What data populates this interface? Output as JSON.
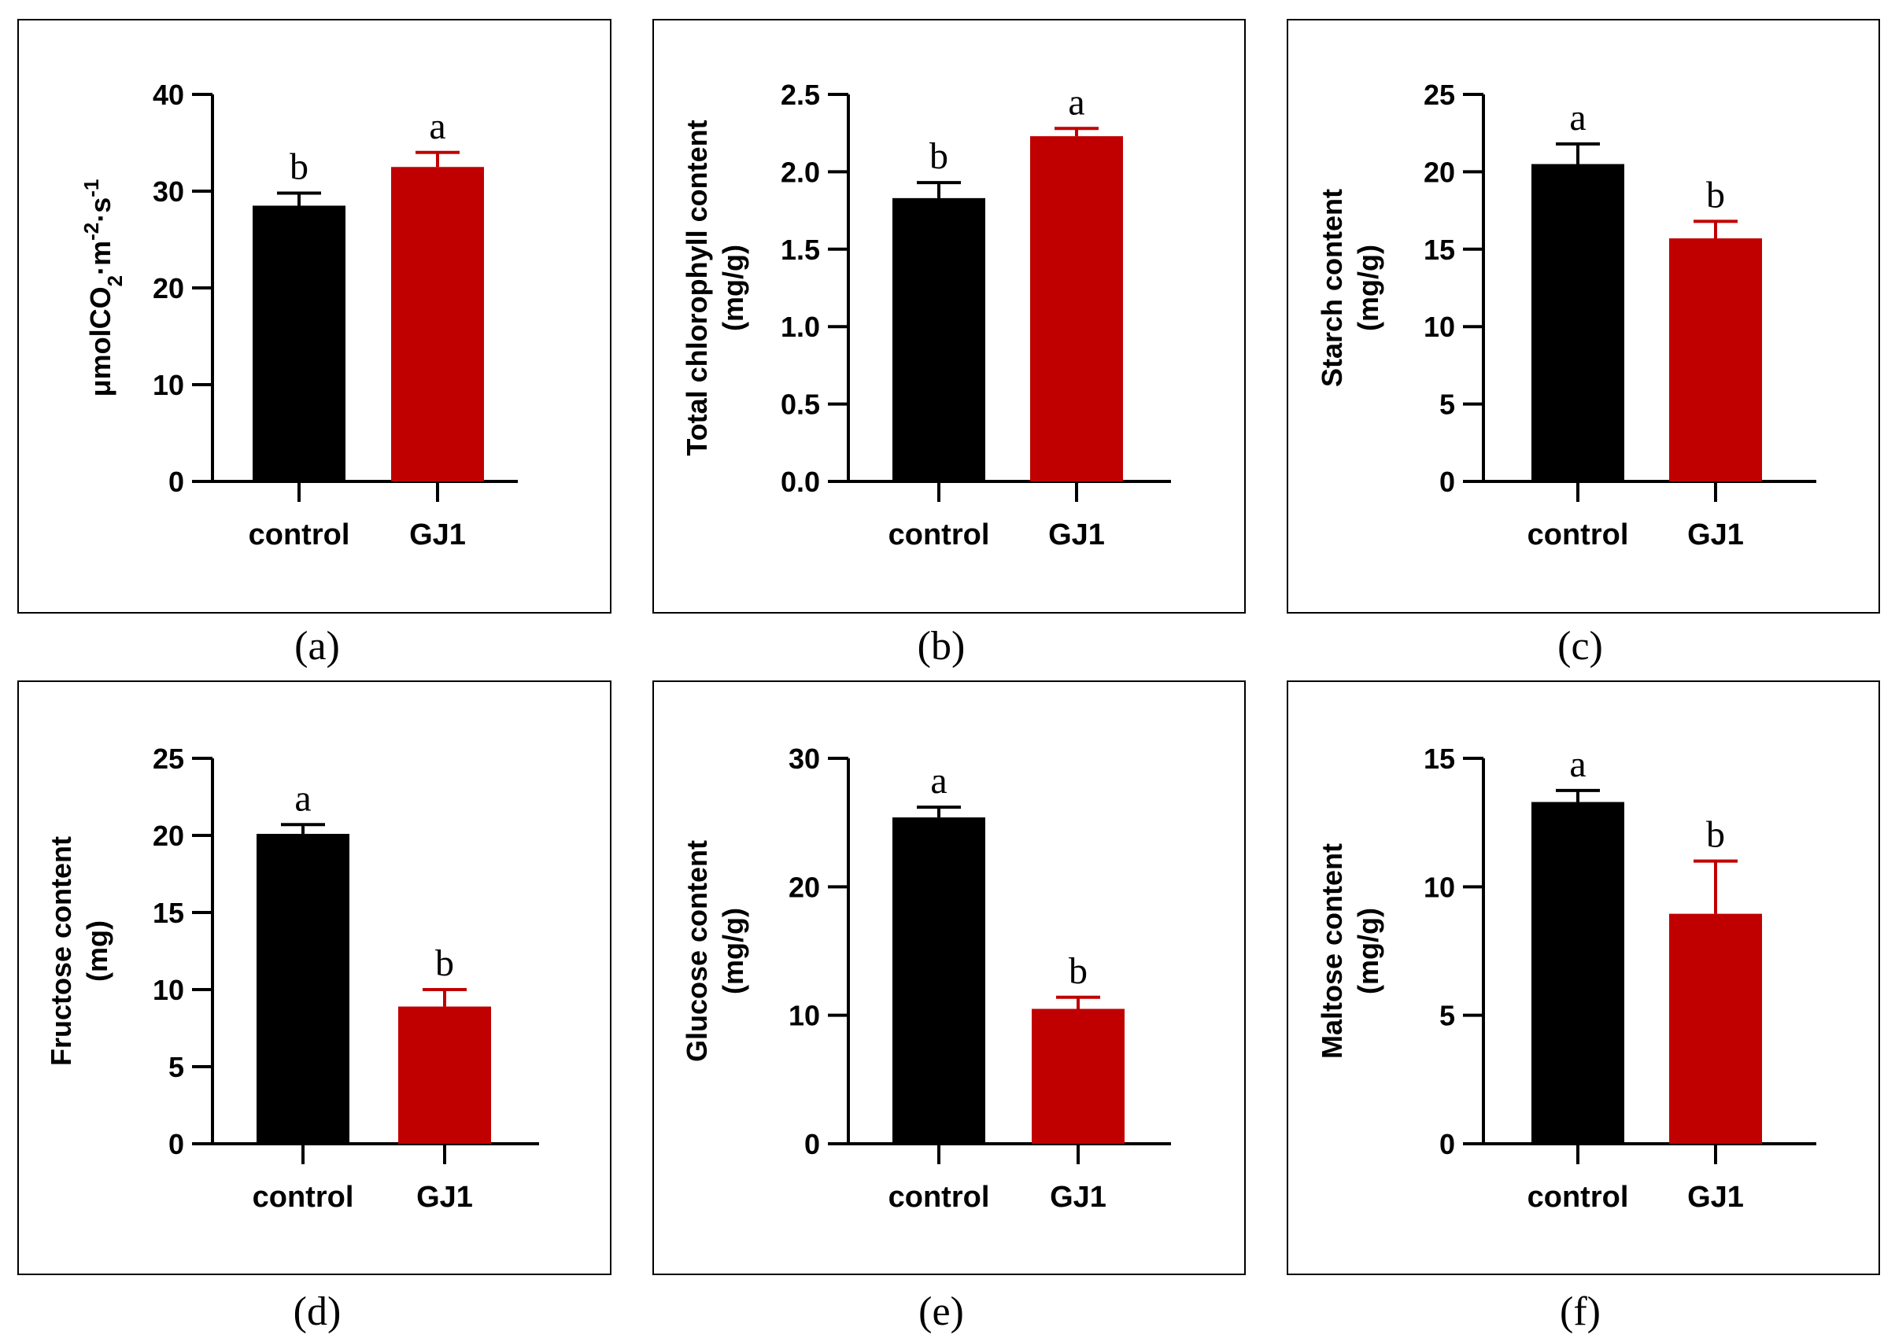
{
  "colors": {
    "control": "#000000",
    "GJ1": "#c00000",
    "frame": "#000000"
  },
  "chart_data": [
    {
      "panel": "(a)",
      "type": "bar",
      "categories": [
        "control",
        "GJ1"
      ],
      "values": [
        28.5,
        32.5
      ],
      "errors": [
        1.3,
        1.5
      ],
      "letters": [
        "b",
        "a"
      ],
      "ylabel": [
        "μmolCO",
        "2",
        "·m",
        "-2",
        "·s",
        "-1"
      ],
      "ylim": [
        0,
        40
      ],
      "yticks": [
        "0",
        "10",
        "20",
        "30",
        "40"
      ]
    },
    {
      "panel": "(b)",
      "type": "bar",
      "categories": [
        "control",
        "GJ1"
      ],
      "values": [
        1.83,
        2.23
      ],
      "errors": [
        0.1,
        0.05
      ],
      "letters": [
        "b",
        "a"
      ],
      "ylabel": [
        "Total chlorophyll content",
        "(mg/g)"
      ],
      "ylim": [
        0,
        2.5
      ],
      "yticks": [
        "0.0",
        "0.5",
        "1.0",
        "1.5",
        "2.0",
        "2.5"
      ]
    },
    {
      "panel": "(c)",
      "type": "bar",
      "categories": [
        "control",
        "GJ1"
      ],
      "values": [
        20.5,
        15.7
      ],
      "errors": [
        1.3,
        1.1
      ],
      "letters": [
        "a",
        "b"
      ],
      "ylabel": [
        "Starch content",
        "(mg/g)"
      ],
      "ylim": [
        0,
        25
      ],
      "yticks": [
        "0",
        "5",
        "10",
        "15",
        "20",
        "25"
      ]
    },
    {
      "panel": "(d)",
      "type": "bar",
      "categories": [
        "control",
        "GJ1"
      ],
      "values": [
        20.1,
        8.9
      ],
      "errors": [
        0.6,
        1.1
      ],
      "letters": [
        "a",
        "b"
      ],
      "ylabel": [
        "Fructose content",
        "(mg)"
      ],
      "ylim": [
        0,
        25
      ],
      "yticks": [
        "0",
        "5",
        "10",
        "15",
        "20",
        "25"
      ]
    },
    {
      "panel": "(e)",
      "type": "bar",
      "categories": [
        "control",
        "GJ1"
      ],
      "values": [
        25.4,
        10.5
      ],
      "errors": [
        0.8,
        0.9
      ],
      "letters": [
        "a",
        "b"
      ],
      "ylabel": [
        "Glucose content",
        "(mg/g)"
      ],
      "ylim": [
        0,
        30
      ],
      "yticks": [
        "0",
        "10",
        "20",
        "30"
      ]
    },
    {
      "panel": "(f)",
      "type": "bar",
      "categories": [
        "control",
        "GJ1"
      ],
      "values": [
        13.3,
        8.95
      ],
      "errors": [
        0.45,
        2.05
      ],
      "letters": [
        "a",
        "b"
      ],
      "ylabel": [
        "Maltose content",
        "(mg/g)"
      ],
      "ylim": [
        0,
        15
      ],
      "yticks": [
        "0",
        "5",
        "10",
        "15"
      ]
    }
  ]
}
